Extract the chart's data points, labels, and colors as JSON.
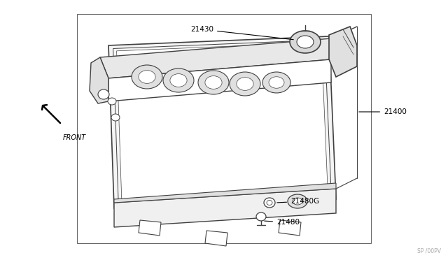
{
  "bg_color": "#ffffff",
  "line_color": "#404040",
  "text_color": "#000000",
  "gray_color": "#888888",
  "watermark": "SP /00PV",
  "front_label": "FRONT",
  "fig_width": 6.4,
  "fig_height": 3.72,
  "dpi": 100
}
